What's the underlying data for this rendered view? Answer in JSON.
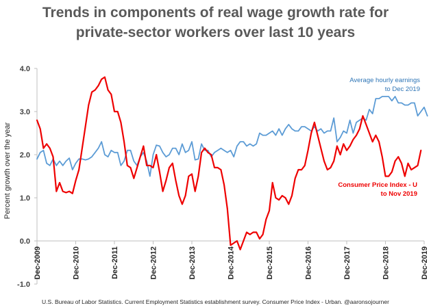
{
  "chart_data": {
    "type": "line",
    "title_lines": [
      "Trends in components of real wage growth rate for",
      "private-sector workers over last 10 years"
    ],
    "ylabel": "Percent growth over the year",
    "xlabel": "",
    "ylim": [
      -1.0,
      4.0
    ],
    "yticks": [
      -1.0,
      0.0,
      1.0,
      2.0,
      3.0,
      4.0
    ],
    "ytick_labels": [
      "-1.0",
      "0.0",
      "1.0",
      "2.0",
      "3.0",
      "4.0"
    ],
    "xlim": [
      0,
      120
    ],
    "xticks": [
      {
        "label": "Dec-2009",
        "x": 0
      },
      {
        "label": "Dec-2010",
        "x": 12
      },
      {
        "label": "Dec-2011",
        "x": 24
      },
      {
        "label": "Dec-2012",
        "x": 36
      },
      {
        "label": "Dec-2013",
        "x": 48
      },
      {
        "label": "Dec-2014",
        "x": 60
      },
      {
        "label": "Dec-2015",
        "x": 72
      },
      {
        "label": "Dec-2016",
        "x": 84
      },
      {
        "label": "Dec-2017",
        "x": 96
      },
      {
        "label": "Dec-2018",
        "x": 108
      },
      {
        "label": "Dec-2019",
        "x": 120
      }
    ],
    "grid": false,
    "series": [
      {
        "name": "Average hourly earnings",
        "label_lines": [
          "Average hourly earnings",
          "to Dec 2019"
        ],
        "color": "#5b9bd5",
        "values": [
          1.9,
          2.05,
          2.1,
          1.8,
          1.75,
          1.9,
          1.75,
          1.85,
          1.75,
          1.85,
          1.92,
          1.65,
          1.8,
          1.9,
          1.9,
          1.88,
          1.9,
          1.95,
          2.05,
          2.15,
          2.3,
          2.0,
          1.95,
          2.1,
          2.05,
          2.05,
          1.75,
          1.85,
          2.1,
          2.1,
          1.85,
          1.75,
          1.95,
          2.05,
          1.85,
          1.5,
          2.0,
          2.22,
          2.2,
          2.05,
          1.95,
          2.0,
          2.15,
          2.15,
          2.0,
          2.25,
          2.05,
          2.1,
          2.3,
          1.88,
          1.9,
          2.25,
          2.1,
          2.1,
          1.95,
          2.05,
          2.1,
          2.15,
          2.1,
          2.05,
          2.1,
          1.95,
          2.2,
          2.3,
          2.3,
          2.2,
          2.25,
          2.2,
          2.25,
          2.5,
          2.45,
          2.45,
          2.5,
          2.55,
          2.45,
          2.6,
          2.45,
          2.6,
          2.7,
          2.6,
          2.55,
          2.55,
          2.65,
          2.65,
          2.6,
          2.55,
          2.65,
          2.55,
          2.6,
          2.5,
          2.55,
          2.55,
          2.85,
          2.3,
          2.4,
          2.55,
          2.5,
          2.8,
          2.5,
          2.75,
          2.8,
          2.85,
          2.8,
          3.05,
          2.95,
          3.3,
          3.3,
          3.35,
          3.35,
          3.35,
          3.25,
          3.35,
          3.2,
          3.2,
          3.15,
          3.15,
          3.2,
          3.2,
          2.9,
          3.0,
          3.1,
          2.9
        ]
      },
      {
        "name": "Consumer Price Index - U",
        "label_lines": [
          "Consumer Price Index - U",
          "to Nov 2019"
        ],
        "color": "#ee0000",
        "values": [
          2.8,
          2.6,
          2.15,
          2.25,
          2.15,
          1.95,
          1.15,
          1.35,
          1.15,
          1.12,
          1.15,
          1.1,
          1.4,
          1.65,
          2.15,
          2.65,
          3.15,
          3.45,
          3.5,
          3.6,
          3.75,
          3.8,
          3.5,
          3.4,
          3.0,
          3.0,
          2.75,
          2.3,
          1.75,
          1.7,
          1.45,
          1.7,
          1.95,
          2.2,
          1.75,
          1.75,
          1.7,
          2.0,
          1.6,
          1.15,
          1.4,
          1.7,
          1.8,
          1.4,
          1.05,
          0.85,
          1.05,
          1.5,
          1.55,
          1.15,
          1.5,
          2.05,
          2.15,
          2.05,
          2.0,
          1.7,
          1.7,
          1.65,
          1.3,
          0.75,
          -0.1,
          -0.05,
          0.0,
          -0.2,
          0.0,
          0.2,
          0.15,
          0.2,
          0.2,
          0.05,
          0.15,
          0.5,
          0.7,
          1.35,
          1.0,
          0.95,
          1.05,
          1.0,
          0.85,
          1.05,
          1.45,
          1.65,
          1.65,
          1.75,
          2.1,
          2.5,
          2.75,
          2.45,
          2.15,
          1.85,
          1.65,
          1.7,
          1.85,
          2.2,
          2.0,
          2.25,
          2.1,
          2.2,
          2.35,
          2.45,
          2.6,
          2.9,
          2.7,
          2.5,
          2.3,
          2.45,
          2.3,
          1.95,
          1.5,
          1.5,
          1.6,
          1.85,
          1.95,
          1.8,
          1.5,
          1.8,
          1.65,
          1.7,
          1.75,
          2.1
        ]
      }
    ]
  },
  "source_text": "U.S. Bureau of Labor Statistics. Current Employment Statistics establishment survey. Consumer Price Index - Urban. @aaronsojourner"
}
